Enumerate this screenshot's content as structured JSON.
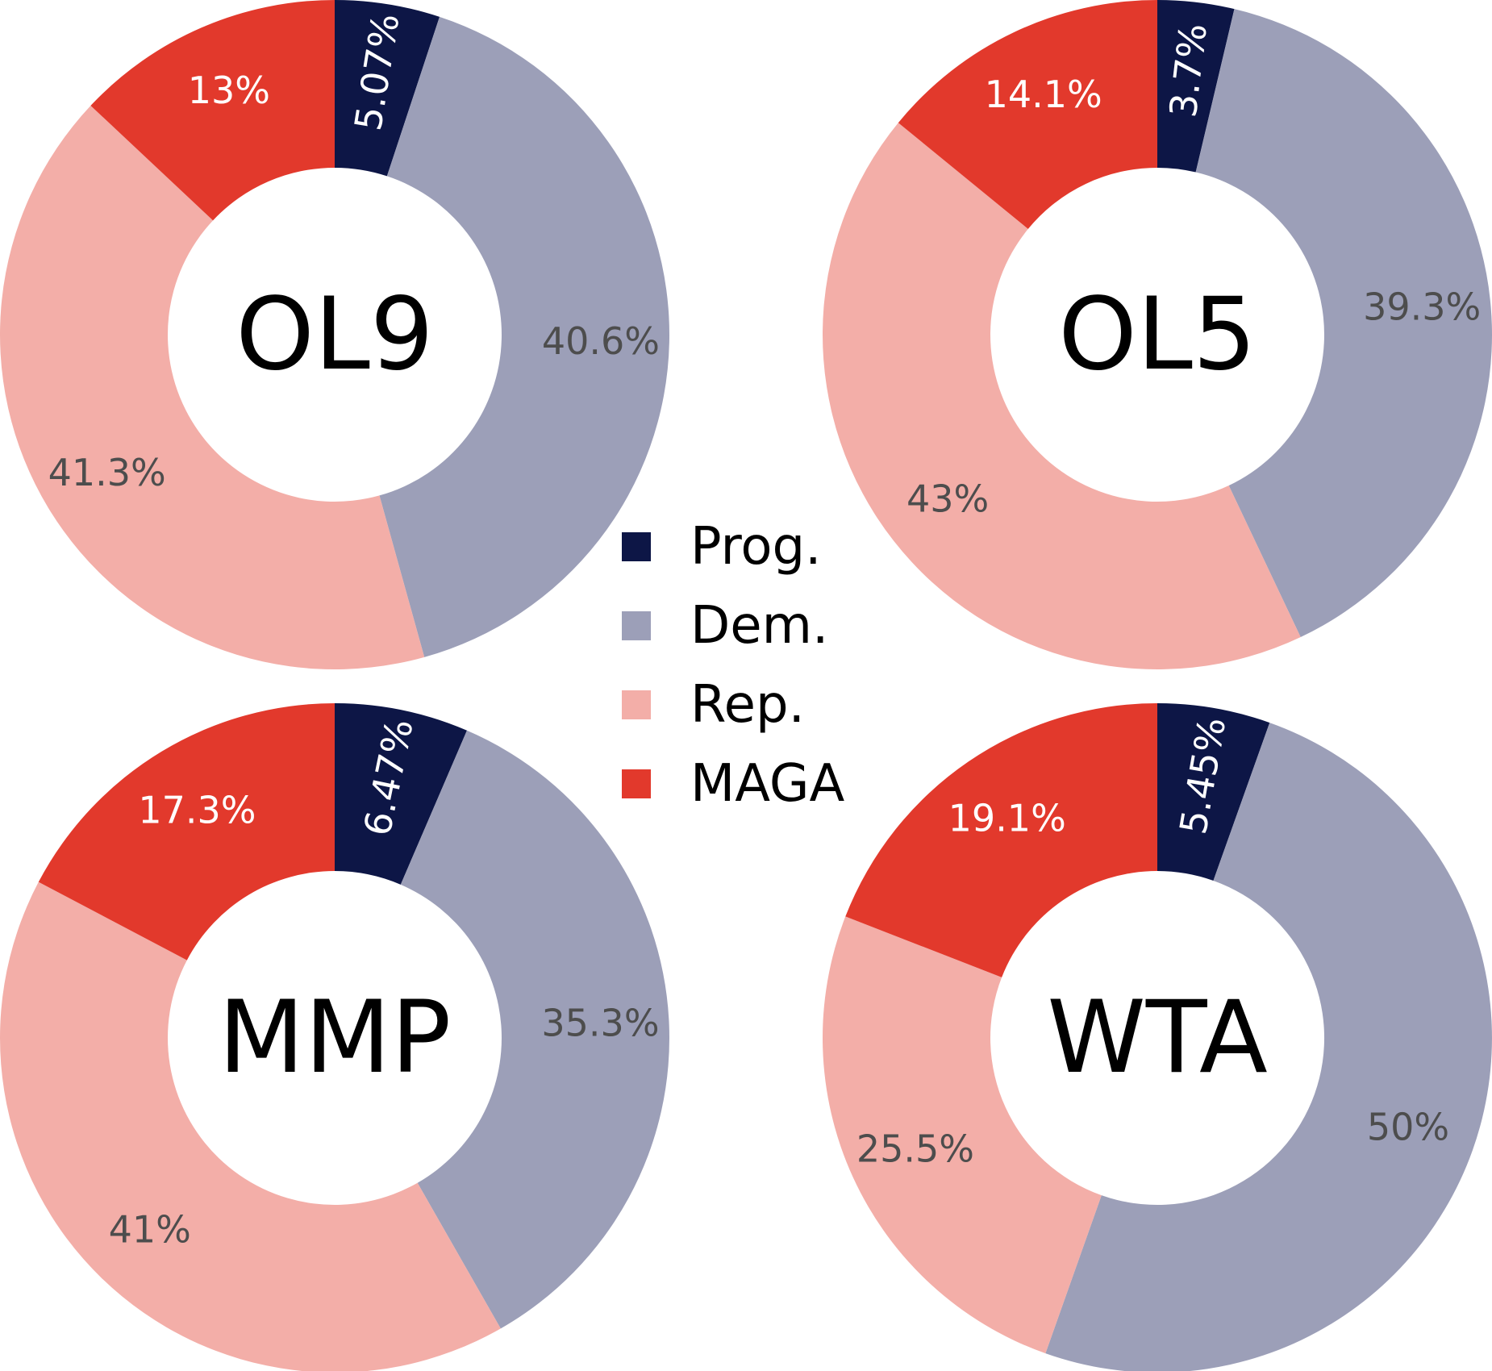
{
  "chart_data": {
    "type": "pie",
    "variant": "donut",
    "series_names": [
      "Prog.",
      "Dem.",
      "Rep.",
      "MAGA"
    ],
    "colors": {
      "Prog.": "#0d1646",
      "Dem.": "#9c9fb8",
      "Rep.": "#f3aea8",
      "MAGA": "#e2392c"
    },
    "label_colors": {
      "Prog.": "#ffffff",
      "Dem.": "#4d4d4d",
      "Rep.": "#4d4d4d",
      "MAGA": "#ffffff"
    },
    "legend": {
      "placement": "center",
      "items": [
        "Prog.",
        "Dem.",
        "Rep.",
        "MAGA"
      ]
    },
    "charts": [
      {
        "name": "OL9",
        "slices": [
          {
            "category": "Prog.",
            "value": 5.07,
            "label": "5.07%"
          },
          {
            "category": "Dem.",
            "value": 40.6,
            "label": "40.6%"
          },
          {
            "category": "Rep.",
            "value": 41.3,
            "label": "41.3%"
          },
          {
            "category": "MAGA",
            "value": 13,
            "label": "13%"
          }
        ]
      },
      {
        "name": "OL5",
        "slices": [
          {
            "category": "Prog.",
            "value": 3.7,
            "label": "3.7%"
          },
          {
            "category": "Dem.",
            "value": 39.3,
            "label": "39.3%"
          },
          {
            "category": "Rep.",
            "value": 43,
            "label": "43%"
          },
          {
            "category": "MAGA",
            "value": 14.1,
            "label": "14.1%"
          }
        ]
      },
      {
        "name": "MMP",
        "slices": [
          {
            "category": "Prog.",
            "value": 6.47,
            "label": "6.47%"
          },
          {
            "category": "Dem.",
            "value": 35.3,
            "label": "35.3%"
          },
          {
            "category": "Rep.",
            "value": 41,
            "label": "41%"
          },
          {
            "category": "MAGA",
            "value": 17.3,
            "label": "17.3%"
          }
        ]
      },
      {
        "name": "WTA",
        "slices": [
          {
            "category": "Prog.",
            "value": 5.45,
            "label": "5.45%"
          },
          {
            "category": "Dem.",
            "value": 50,
            "label": "50%"
          },
          {
            "category": "Rep.",
            "value": 25.5,
            "label": "25.5%"
          },
          {
            "category": "MAGA",
            "value": 19.1,
            "label": "19.1%"
          }
        ]
      }
    ]
  }
}
